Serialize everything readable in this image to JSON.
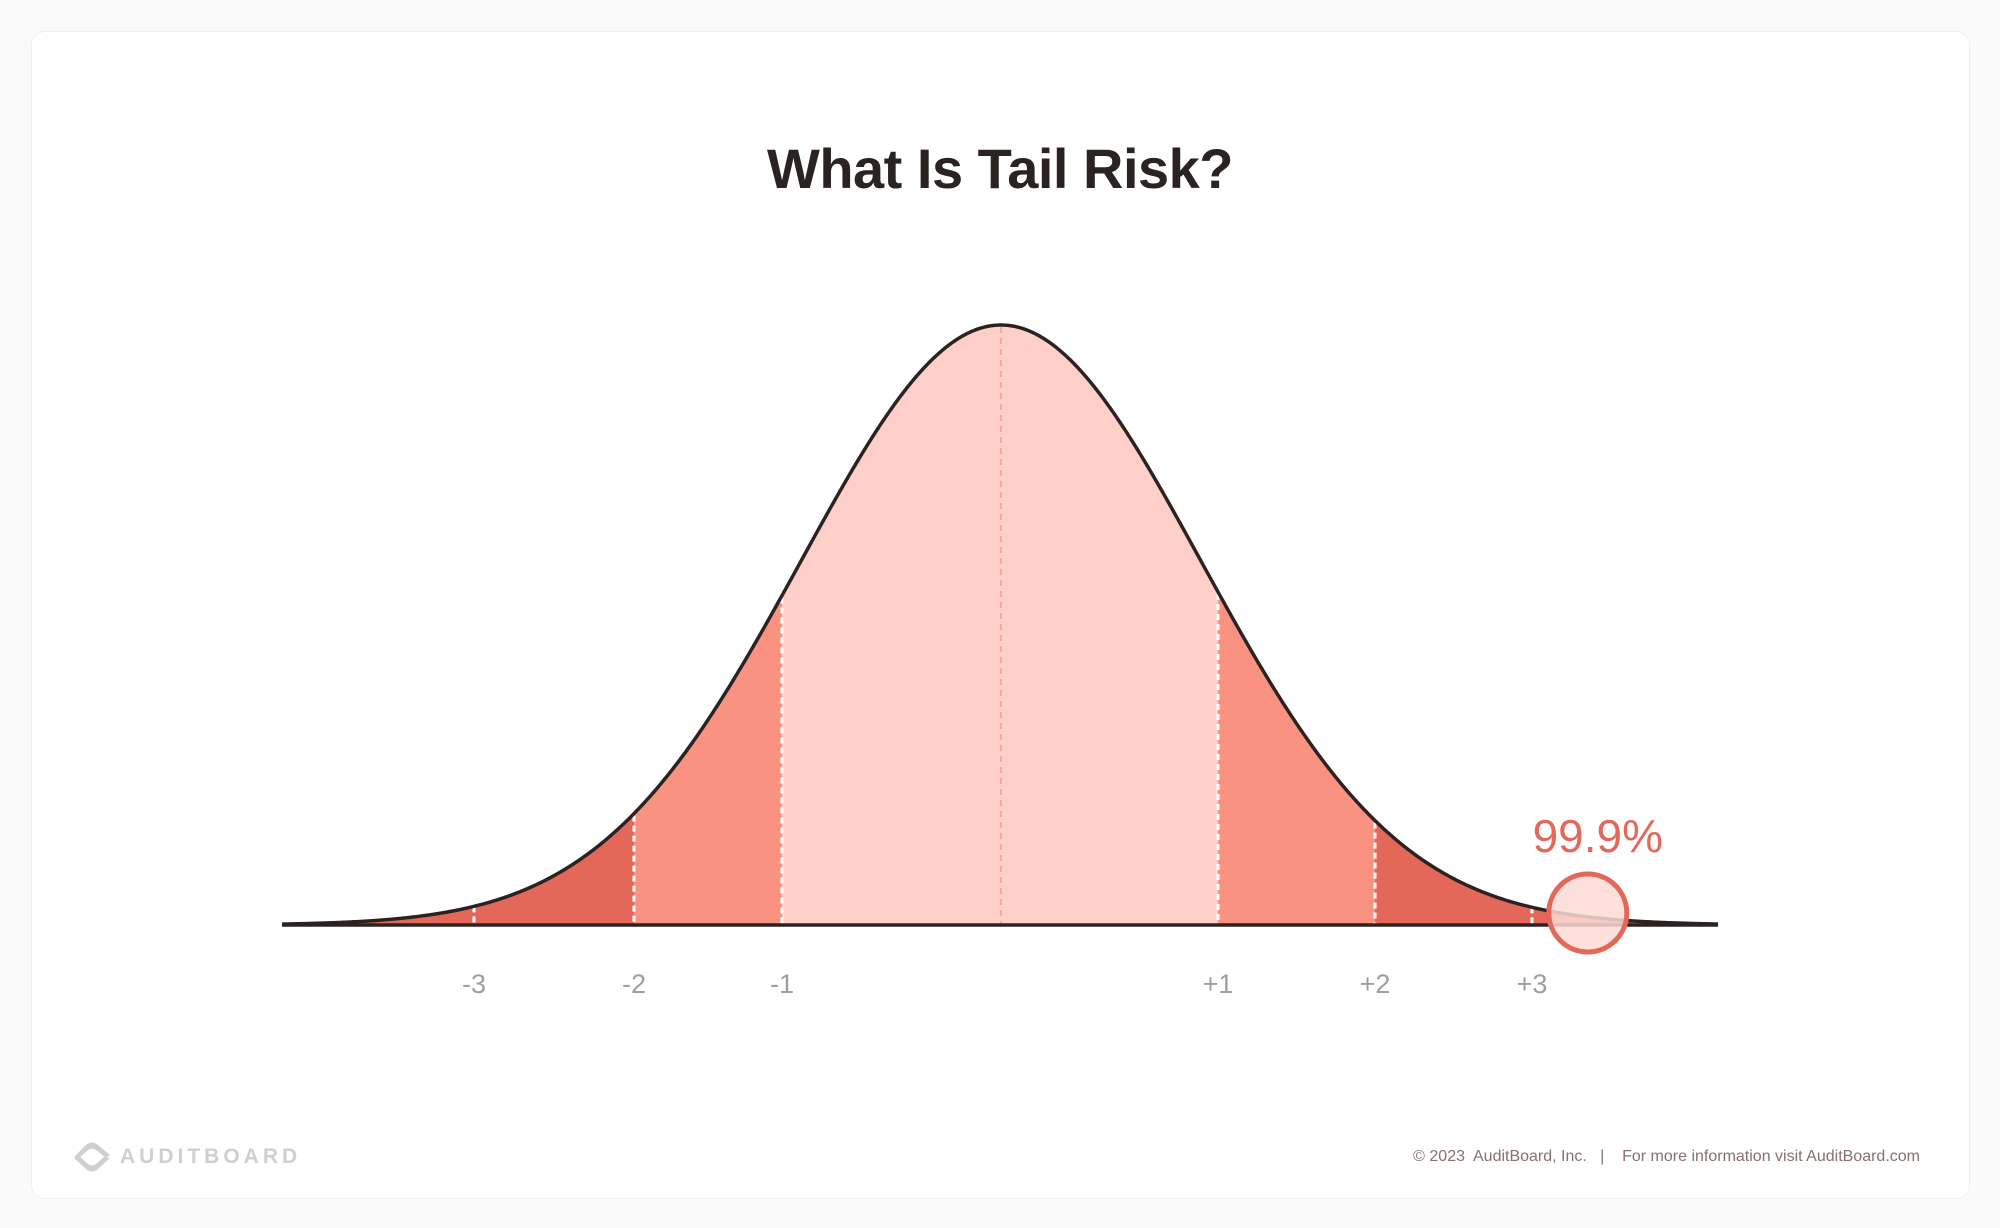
{
  "chart_data": {
    "type": "area",
    "title": "What Is Tail Risk?",
    "xlabel": "",
    "ylabel": "",
    "distribution": "normal",
    "tick_labels": [
      "-3",
      "-2",
      "-1",
      "+1",
      "+2",
      "+3"
    ],
    "tick_values": [
      -3,
      -2,
      -1,
      1,
      2,
      3
    ],
    "regions": [
      {
        "from": -1,
        "to": 1,
        "color": "#FECFC8"
      },
      {
        "from": -2,
        "to": -1,
        "color": "#FA9282"
      },
      {
        "from": 1,
        "to": 2,
        "color": "#FA9282"
      },
      {
        "from": -4,
        "to": -2,
        "color": "#E4685A"
      },
      {
        "from": 2,
        "to": 4,
        "color": "#E4685A"
      }
    ],
    "annotation": {
      "label": "99.9%",
      "at": 3.3,
      "color": "#E4685A"
    },
    "grid": false
  },
  "footer": {
    "copyright": "© 2023  AuditBoard, Inc.   |    For more information visit AuditBoard.com"
  },
  "logo": {
    "text": "AUDITBOARD"
  }
}
